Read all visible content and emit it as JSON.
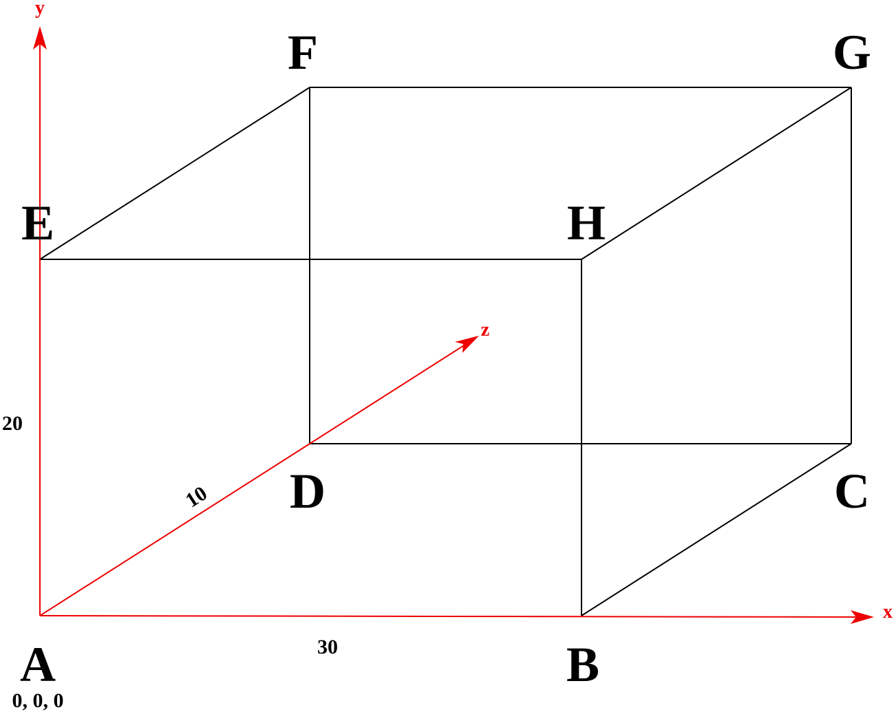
{
  "vertices": {
    "A": "A",
    "B": "B",
    "C": "C",
    "D": "D",
    "E": "E",
    "F": "F",
    "G": "G",
    "H": "H"
  },
  "axes": {
    "x": "x",
    "y": "y",
    "z": "z"
  },
  "dimensions": {
    "height": "20",
    "depth": "10",
    "width": "30"
  },
  "origin": "0, 0, 0"
}
